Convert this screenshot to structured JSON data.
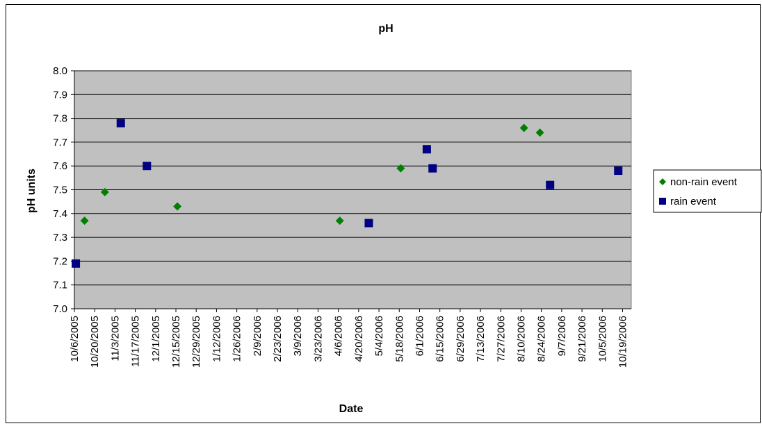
{
  "chart_data": {
    "type": "scatter",
    "title": "pH",
    "xlabel": "Date",
    "ylabel": "pH units",
    "ylim": [
      7.0,
      8.0
    ],
    "y_ticks": [
      "7.0",
      "7.1",
      "7.2",
      "7.3",
      "7.4",
      "7.5",
      "7.6",
      "7.7",
      "7.8",
      "7.9",
      "8.0"
    ],
    "x_ticks": [
      "10/6/2005",
      "10/20/2005",
      "11/3/2005",
      "11/17/2005",
      "12/1/2005",
      "12/15/2005",
      "12/29/2005",
      "1/12/2006",
      "1/26/2006",
      "2/9/2006",
      "2/23/2006",
      "3/9/2006",
      "3/23/2006",
      "4/6/2006",
      "4/20/2006",
      "5/4/2006",
      "5/18/2006",
      "6/1/2006",
      "6/15/2006",
      "6/29/2006",
      "7/13/2006",
      "7/27/2006",
      "8/10/2006",
      "8/24/2006",
      "9/7/2006",
      "9/21/2006",
      "10/5/2006",
      "10/19/2006"
    ],
    "xlim": [
      "10/6/2005",
      "10/19/2006"
    ],
    "grid": true,
    "legend_position": "right",
    "series": [
      {
        "name": "non-rain event",
        "marker": "diamond",
        "color": "#008000",
        "points": [
          {
            "x": "10/13/2005",
            "y": 7.37
          },
          {
            "x": "10/27/2005",
            "y": 7.49
          },
          {
            "x": "12/16/2005",
            "y": 7.43
          },
          {
            "x": "4/7/2006",
            "y": 7.37
          },
          {
            "x": "5/19/2006",
            "y": 7.59
          },
          {
            "x": "8/12/2006",
            "y": 7.76
          },
          {
            "x": "8/23/2006",
            "y": 7.74
          }
        ]
      },
      {
        "name": "rain event",
        "marker": "square",
        "color": "#000080",
        "points": [
          {
            "x": "10/7/2005",
            "y": 7.19
          },
          {
            "x": "11/7/2005",
            "y": 7.78
          },
          {
            "x": "11/25/2005",
            "y": 7.6
          },
          {
            "x": "4/27/2006",
            "y": 7.36
          },
          {
            "x": "6/6/2006",
            "y": 7.67
          },
          {
            "x": "6/10/2006",
            "y": 7.59
          },
          {
            "x": "8/30/2006",
            "y": 7.52
          },
          {
            "x": "10/16/2006",
            "y": 7.58
          }
        ]
      }
    ]
  },
  "colors": {
    "plot_background": "#C0C0C0",
    "gridline": "#000000"
  }
}
